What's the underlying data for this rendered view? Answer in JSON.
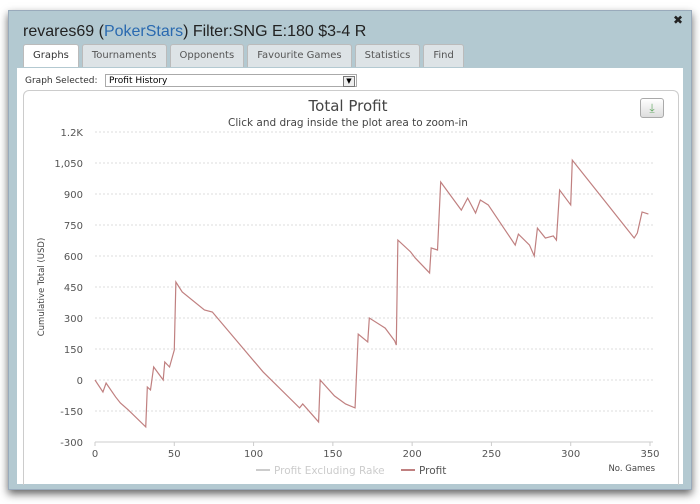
{
  "window": {
    "title_user": "revares69",
    "title_open": " (",
    "title_site": "PokerStars",
    "title_close": ")",
    "title_filter": " Filter:SNG E:180 $3-4 R"
  },
  "tabs": [
    "Graphs",
    "Tournaments",
    "Opponents",
    "Favourite Games",
    "Statistics",
    "Find"
  ],
  "graph_selector": {
    "label": "Graph Selected:",
    "value": "Profit History"
  },
  "chart_data": {
    "type": "line",
    "title": "Total Profit",
    "subtitle": "Click and drag inside the plot area to zoom-in",
    "xlabel": "No. Games",
    "ylabel": "Cumulative Total (USD)",
    "xlim": [
      0,
      350
    ],
    "ylim": [
      -300,
      1200
    ],
    "xticks": [
      0,
      50,
      100,
      150,
      200,
      250,
      300,
      350
    ],
    "yticks": [
      -300,
      -150,
      0,
      150,
      300,
      450,
      600,
      750,
      900,
      1050,
      1200
    ],
    "ytick_labels": [
      "-300",
      "-150",
      "0",
      "150",
      "300",
      "450",
      "600",
      "750",
      "900",
      "1,050",
      "1.2K"
    ],
    "grid": "horizontal dashed",
    "legend": "bottom-center",
    "series": [
      {
        "name": "Profit Excluding Rake",
        "color": "#cccccc",
        "visible": false,
        "x": [],
        "y": []
      },
      {
        "name": "Profit",
        "color": "#c08080",
        "visible": true,
        "x": [
          0,
          5,
          7,
          13,
          16,
          21,
          32,
          33,
          35,
          37,
          43,
          44,
          47,
          50,
          51,
          55,
          69,
          74,
          106,
          129,
          131,
          141,
          142,
          151,
          158,
          164,
          166,
          172,
          173,
          183,
          189,
          190,
          191,
          199,
          202,
          211,
          212,
          216,
          218,
          231,
          235,
          240,
          243,
          248,
          265,
          267,
          274,
          277,
          279,
          284,
          289,
          291,
          293,
          300,
          301,
          322,
          340,
          342,
          345,
          349
        ],
        "y": [
          0,
          -58,
          -15,
          -82,
          -111,
          -145,
          -227,
          -34,
          -48,
          63,
          0,
          87,
          63,
          145,
          474,
          426,
          339,
          329,
          39,
          -135,
          -116,
          -203,
          0,
          -77,
          -116,
          -135,
          222,
          184,
          300,
          251,
          189,
          169,
          677,
          620,
          590,
          518,
          639,
          629,
          958,
          822,
          880,
          808,
          871,
          847,
          653,
          706,
          653,
          600,
          735,
          687,
          697,
          677,
          919,
          847,
          1064,
          861,
          687,
          711,
          813,
          803
        ]
      }
    ]
  },
  "download_icon": "download-icon"
}
